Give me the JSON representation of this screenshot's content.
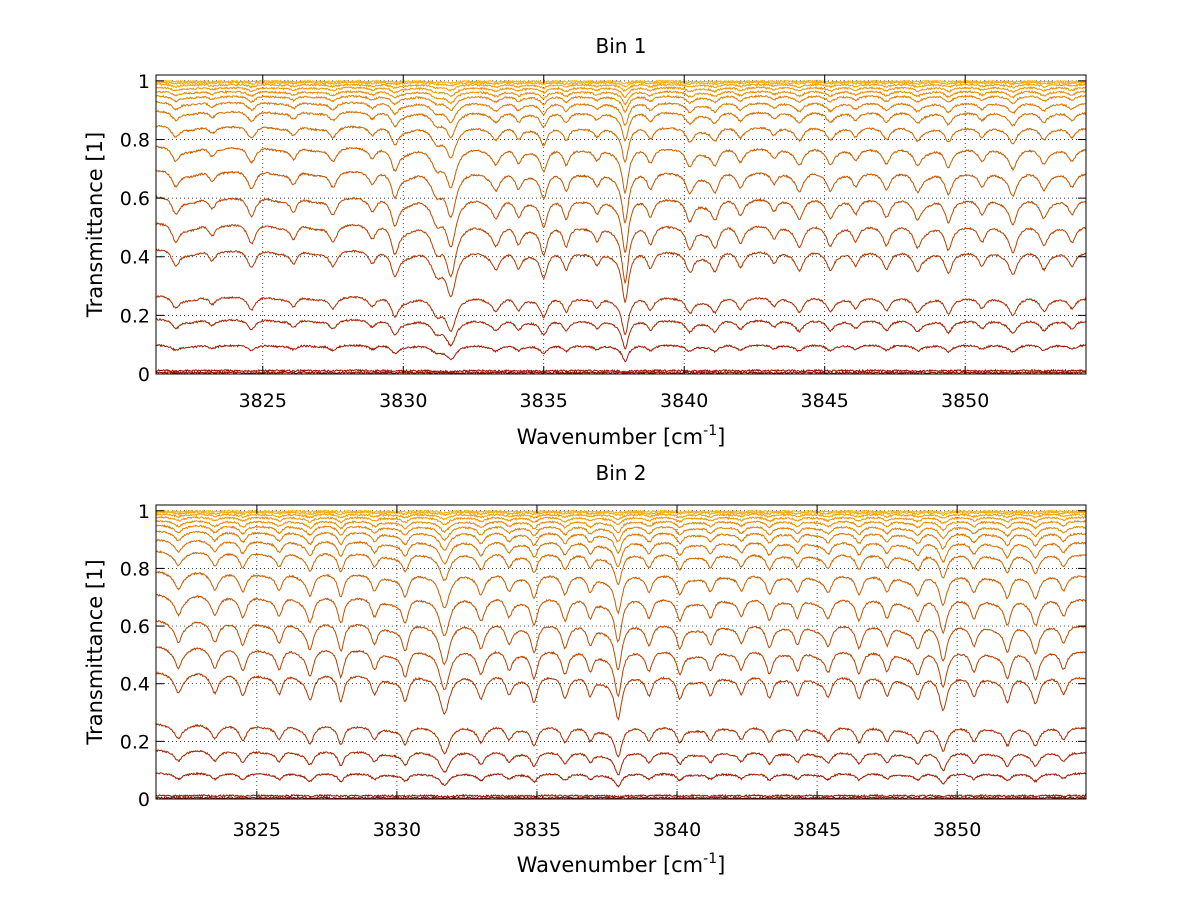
{
  "chart_data": [
    {
      "type": "line",
      "title": "Bin 1",
      "xlabel": "Wavenumber [cm",
      "xlabel_sup": "-1",
      "xlabel_suffix": "]",
      "ylabel": "Transmittance [1]",
      "xlim": [
        3821.2,
        3854.3
      ],
      "ylim": [
        0,
        1.02
      ],
      "xticks": [
        3825,
        3830,
        3835,
        3840,
        3845,
        3850
      ],
      "xticklabels": [
        "3825",
        "3830",
        "3835",
        "3840",
        "3845",
        "3850"
      ],
      "yticks": [
        0,
        0.2,
        0.4,
        0.6,
        0.8,
        1
      ],
      "yticklabels": [
        "0",
        "0.2",
        "0.4",
        "0.6",
        "0.8",
        "1"
      ],
      "grid": true,
      "line_colors_from": "#8b0000",
      "line_colors_to": "#ffb000",
      "series": [
        {
          "baseline": 0.0,
          "depth": 0.0
        },
        {
          "baseline": 0.005,
          "depth": 0.002
        },
        {
          "baseline": 0.012,
          "depth": 0.005
        },
        {
          "baseline": 0.1,
          "depth": 0.05
        },
        {
          "baseline": 0.19,
          "depth": 0.09
        },
        {
          "baseline": 0.27,
          "depth": 0.12
        },
        {
          "baseline": 0.43,
          "depth": 0.16
        },
        {
          "baseline": 0.52,
          "depth": 0.18
        },
        {
          "baseline": 0.61,
          "depth": 0.17
        },
        {
          "baseline": 0.7,
          "depth": 0.16
        },
        {
          "baseline": 0.78,
          "depth": 0.14
        },
        {
          "baseline": 0.85,
          "depth": 0.11
        },
        {
          "baseline": 0.9,
          "depth": 0.09
        },
        {
          "baseline": 0.93,
          "depth": 0.07
        },
        {
          "baseline": 0.95,
          "depth": 0.05
        },
        {
          "baseline": 0.965,
          "depth": 0.04
        },
        {
          "baseline": 0.978,
          "depth": 0.03
        },
        {
          "baseline": 0.988,
          "depth": 0.02
        },
        {
          "baseline": 0.995,
          "depth": 0.012
        },
        {
          "baseline": 0.999,
          "depth": 0.006
        }
      ],
      "absorption_lines": [
        {
          "x": 3821.9,
          "depth": 0.35,
          "width": 0.18
        },
        {
          "x": 3823.2,
          "depth": 0.25,
          "width": 0.16
        },
        {
          "x": 3824.6,
          "depth": 0.4,
          "width": 0.18
        },
        {
          "x": 3826.1,
          "depth": 0.3,
          "width": 0.16
        },
        {
          "x": 3827.5,
          "depth": 0.35,
          "width": 0.18
        },
        {
          "x": 3828.9,
          "depth": 0.25,
          "width": 0.15
        },
        {
          "x": 3829.7,
          "depth": 0.5,
          "width": 0.16
        },
        {
          "x": 3831.2,
          "depth": 0.45,
          "width": 0.25
        },
        {
          "x": 3831.7,
          "depth": 0.9,
          "width": 0.22
        },
        {
          "x": 3833.3,
          "depth": 0.3,
          "width": 0.16
        },
        {
          "x": 3834.1,
          "depth": 0.35,
          "width": 0.15
        },
        {
          "x": 3835.0,
          "depth": 0.55,
          "width": 0.16
        },
        {
          "x": 3835.8,
          "depth": 0.4,
          "width": 0.14
        },
        {
          "x": 3836.9,
          "depth": 0.3,
          "width": 0.15
        },
        {
          "x": 3837.9,
          "depth": 1.0,
          "width": 0.14
        },
        {
          "x": 3838.8,
          "depth": 0.35,
          "width": 0.15
        },
        {
          "x": 3840.2,
          "depth": 0.45,
          "width": 0.18
        },
        {
          "x": 3841.1,
          "depth": 0.35,
          "width": 0.15
        },
        {
          "x": 3842.0,
          "depth": 0.3,
          "width": 0.15
        },
        {
          "x": 3843.2,
          "depth": 0.25,
          "width": 0.14
        },
        {
          "x": 3844.1,
          "depth": 0.35,
          "width": 0.16
        },
        {
          "x": 3845.2,
          "depth": 0.3,
          "width": 0.15
        },
        {
          "x": 3846.1,
          "depth": 0.3,
          "width": 0.15
        },
        {
          "x": 3847.2,
          "depth": 0.35,
          "width": 0.16
        },
        {
          "x": 3848.3,
          "depth": 0.3,
          "width": 0.15
        },
        {
          "x": 3849.4,
          "depth": 0.45,
          "width": 0.16
        },
        {
          "x": 3850.6,
          "depth": 0.3,
          "width": 0.15
        },
        {
          "x": 3851.7,
          "depth": 0.4,
          "width": 0.16
        },
        {
          "x": 3852.8,
          "depth": 0.3,
          "width": 0.15
        },
        {
          "x": 3853.8,
          "depth": 0.3,
          "width": 0.16
        }
      ]
    },
    {
      "type": "line",
      "title": "Bin 2",
      "xlabel": "Wavenumber [cm",
      "xlabel_sup": "-1",
      "xlabel_suffix": "]",
      "ylabel": "Transmittance [1]",
      "xlim": [
        3821.4,
        3854.6
      ],
      "ylim": [
        0,
        1.02
      ],
      "xticks": [
        3825,
        3830,
        3835,
        3840,
        3845,
        3850
      ],
      "xticklabels": [
        "3825",
        "3830",
        "3835",
        "3840",
        "3845",
        "3850"
      ],
      "yticks": [
        0,
        0.2,
        0.4,
        0.6,
        0.8,
        1
      ],
      "yticklabels": [
        "0",
        "0.2",
        "0.4",
        "0.6",
        "0.8",
        "1"
      ],
      "grid": true,
      "line_colors_from": "#8b0000",
      "line_colors_to": "#ffb000",
      "series": [
        {
          "baseline": 0.0,
          "depth": 0.0
        },
        {
          "baseline": 0.004,
          "depth": 0.002
        },
        {
          "baseline": 0.012,
          "depth": 0.005
        },
        {
          "baseline": 0.09,
          "depth": 0.05
        },
        {
          "baseline": 0.17,
          "depth": 0.09
        },
        {
          "baseline": 0.26,
          "depth": 0.12
        },
        {
          "baseline": 0.44,
          "depth": 0.17
        },
        {
          "baseline": 0.53,
          "depth": 0.18
        },
        {
          "baseline": 0.62,
          "depth": 0.18
        },
        {
          "baseline": 0.71,
          "depth": 0.17
        },
        {
          "baseline": 0.79,
          "depth": 0.15
        },
        {
          "baseline": 0.86,
          "depth": 0.12
        },
        {
          "baseline": 0.9,
          "depth": 0.1
        },
        {
          "baseline": 0.93,
          "depth": 0.08
        },
        {
          "baseline": 0.95,
          "depth": 0.06
        },
        {
          "baseline": 0.965,
          "depth": 0.045
        },
        {
          "baseline": 0.978,
          "depth": 0.03
        },
        {
          "baseline": 0.988,
          "depth": 0.02
        },
        {
          "baseline": 0.995,
          "depth": 0.012
        },
        {
          "baseline": 0.999,
          "depth": 0.006
        }
      ],
      "absorption_lines": [
        {
          "x": 3822.2,
          "depth": 0.3,
          "width": 0.15
        },
        {
          "x": 3823.5,
          "depth": 0.35,
          "width": 0.15
        },
        {
          "x": 3824.5,
          "depth": 0.45,
          "width": 0.16
        },
        {
          "x": 3825.8,
          "depth": 0.4,
          "width": 0.15
        },
        {
          "x": 3826.9,
          "depth": 0.45,
          "width": 0.15
        },
        {
          "x": 3828.0,
          "depth": 0.55,
          "width": 0.14
        },
        {
          "x": 3829.2,
          "depth": 0.4,
          "width": 0.15
        },
        {
          "x": 3830.3,
          "depth": 0.5,
          "width": 0.15
        },
        {
          "x": 3831.7,
          "depth": 0.8,
          "width": 0.22
        },
        {
          "x": 3833.0,
          "depth": 0.4,
          "width": 0.15
        },
        {
          "x": 3834.0,
          "depth": 0.35,
          "width": 0.14
        },
        {
          "x": 3834.9,
          "depth": 0.55,
          "width": 0.15
        },
        {
          "x": 3836.0,
          "depth": 0.45,
          "width": 0.15
        },
        {
          "x": 3836.9,
          "depth": 0.4,
          "width": 0.14
        },
        {
          "x": 3837.9,
          "depth": 0.85,
          "width": 0.16
        },
        {
          "x": 3839.0,
          "depth": 0.4,
          "width": 0.15
        },
        {
          "x": 3840.1,
          "depth": 0.45,
          "width": 0.15
        },
        {
          "x": 3841.2,
          "depth": 0.4,
          "width": 0.15
        },
        {
          "x": 3842.3,
          "depth": 0.35,
          "width": 0.14
        },
        {
          "x": 3843.3,
          "depth": 0.45,
          "width": 0.15
        },
        {
          "x": 3844.3,
          "depth": 0.4,
          "width": 0.14
        },
        {
          "x": 3845.4,
          "depth": 0.35,
          "width": 0.15
        },
        {
          "x": 3846.5,
          "depth": 0.45,
          "width": 0.15
        },
        {
          "x": 3847.5,
          "depth": 0.4,
          "width": 0.14
        },
        {
          "x": 3848.6,
          "depth": 0.4,
          "width": 0.15
        },
        {
          "x": 3849.5,
          "depth": 0.65,
          "width": 0.16
        },
        {
          "x": 3850.6,
          "depth": 0.4,
          "width": 0.15
        },
        {
          "x": 3851.8,
          "depth": 0.5,
          "width": 0.15
        },
        {
          "x": 3852.8,
          "depth": 0.45,
          "width": 0.15
        },
        {
          "x": 3853.8,
          "depth": 0.35,
          "width": 0.15
        }
      ]
    }
  ]
}
